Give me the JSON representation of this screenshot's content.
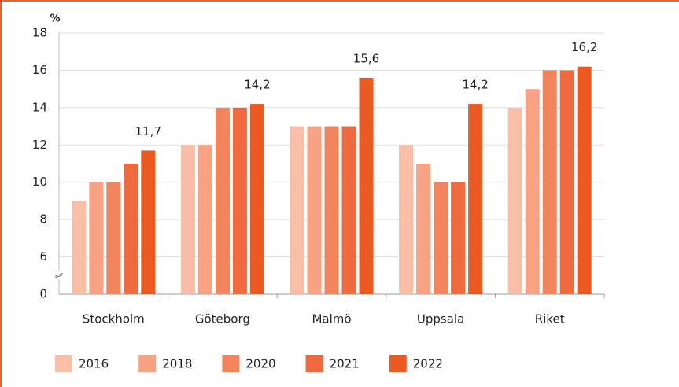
{
  "chart_data": {
    "type": "bar",
    "y_label": "%",
    "categories": [
      "Stockholm",
      "Göteborg",
      "Malmö",
      "Uppsala",
      "Riket"
    ],
    "series": [
      {
        "name": "2016",
        "color": "#f9bea7",
        "values": [
          9,
          12,
          13,
          12,
          14
        ]
      },
      {
        "name": "2018",
        "color": "#f6a283",
        "values": [
          10,
          12,
          13,
          11,
          15
        ]
      },
      {
        "name": "2020",
        "color": "#f2845d",
        "values": [
          10,
          14,
          13,
          10,
          16
        ]
      },
      {
        "name": "2021",
        "color": "#ef6b3f",
        "values": [
          11,
          14,
          13,
          10,
          16
        ]
      },
      {
        "name": "2022",
        "color": "#ec5a24",
        "values": [
          11.7,
          14.2,
          15.6,
          14.2,
          16.2
        ],
        "value_labels": [
          "11,7",
          "14,2",
          "15,6",
          "14,2",
          "16,2"
        ]
      }
    ],
    "ylim": [
      0,
      18
    ],
    "yticks": [
      0,
      6,
      8,
      10,
      12,
      14,
      16,
      18
    ],
    "axis_break": true,
    "grid": true
  }
}
